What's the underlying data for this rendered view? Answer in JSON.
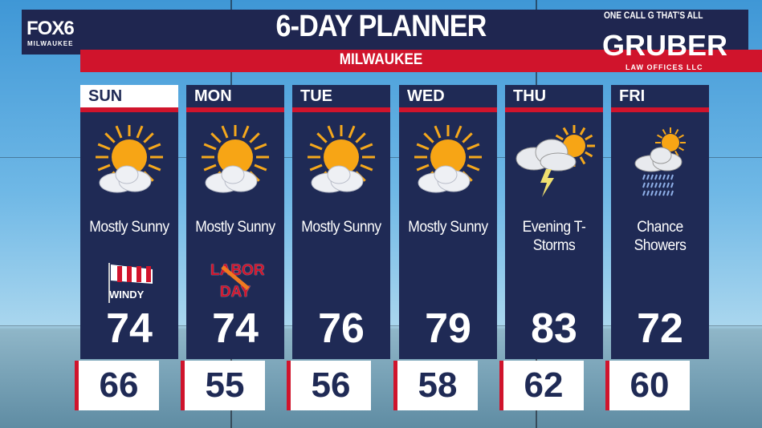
{
  "header": {
    "title": "6-DAY PLANNER",
    "location": "MILWAUKEE",
    "station_logo": "FOX6",
    "station_sub": "MILWAUKEE"
  },
  "sponsor": {
    "tagline": "ONE CALL G THAT'S ALL",
    "name": "GRUBER",
    "sub": "LAW OFFICES LLC"
  },
  "colors": {
    "navy": "#1f2a55",
    "red": "#d0142c"
  },
  "days": [
    {
      "day": "SUN",
      "icon": "sun-cloud-icon",
      "condition": "Mostly Sunny",
      "badge": "WINDY",
      "high": "74",
      "low": "66"
    },
    {
      "day": "MON",
      "icon": "sun-cloud-icon",
      "condition": "Mostly Sunny",
      "badge": "LABOR DAY",
      "high": "74",
      "low": "55"
    },
    {
      "day": "TUE",
      "icon": "sun-cloud-icon",
      "condition": "Mostly Sunny",
      "high": "76",
      "low": "56"
    },
    {
      "day": "WED",
      "icon": "sun-cloud-icon",
      "condition": "Mostly Sunny",
      "high": "79",
      "low": "58"
    },
    {
      "day": "THU",
      "icon": "thunderstorm-icon",
      "condition": "Evening T-Storms",
      "high": "83",
      "low": "62"
    },
    {
      "day": "FRI",
      "icon": "showers-icon",
      "condition": "Chance Showers",
      "high": "72",
      "low": "60"
    }
  ]
}
